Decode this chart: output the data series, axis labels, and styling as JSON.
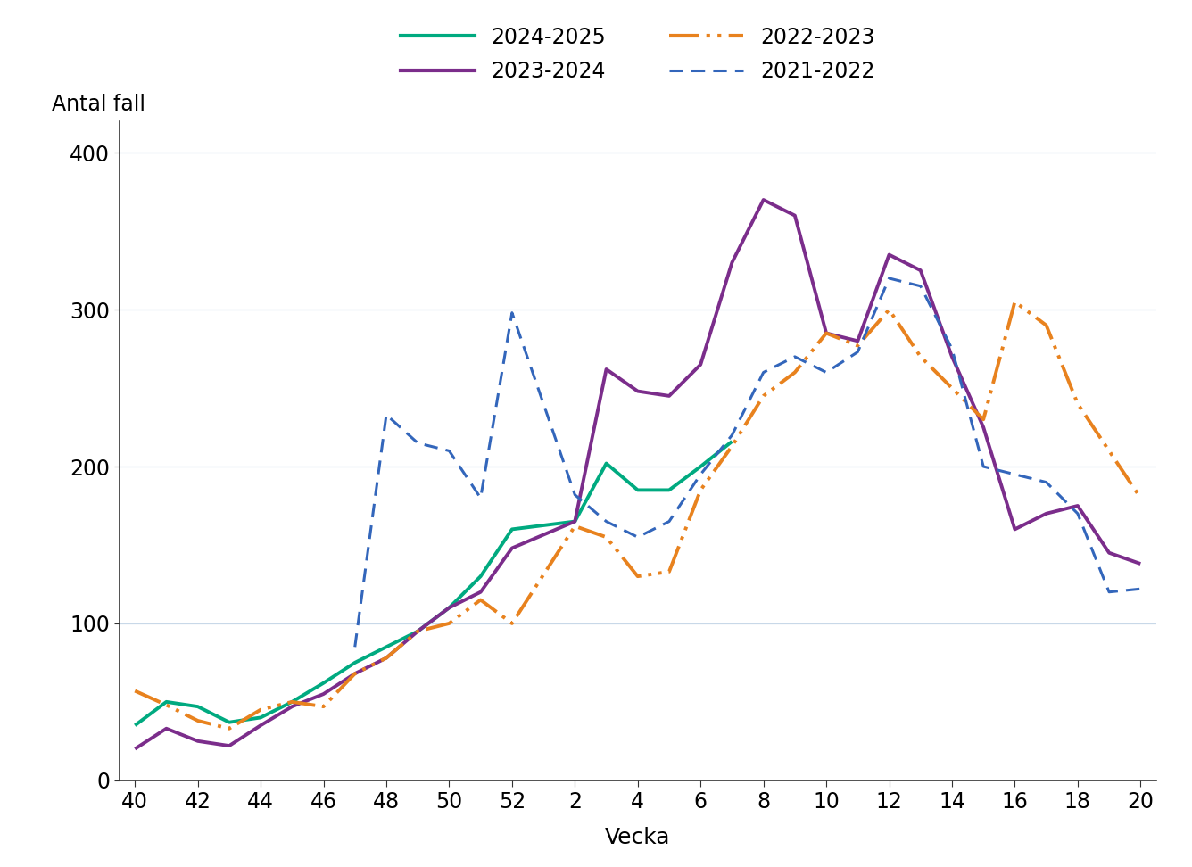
{
  "xlabel": "Vecka",
  "ylabel_title": "Antal fall",
  "ylim": [
    0,
    420
  ],
  "yticks": [
    0,
    100,
    200,
    300,
    400
  ],
  "background_color": "#ffffff",
  "series_order": [
    "2024-2025",
    "2023-2024",
    "2022-2023",
    "2021-2022"
  ],
  "series": {
    "2024-2025": {
      "color": "#00aa80",
      "linestyle": "solid",
      "linewidth": 2.8,
      "weeks": [
        40,
        41,
        42,
        43,
        44,
        45,
        46,
        47,
        48,
        49,
        50,
        51,
        52,
        2,
        3,
        4,
        5,
        6,
        7
      ],
      "values": [
        35,
        50,
        47,
        37,
        40,
        50,
        62,
        75,
        85,
        95,
        110,
        130,
        160,
        165,
        202,
        185,
        185,
        200,
        216
      ]
    },
    "2023-2024": {
      "color": "#7b2d8b",
      "linestyle": "solid",
      "linewidth": 2.8,
      "weeks": [
        40,
        41,
        42,
        43,
        44,
        45,
        46,
        47,
        48,
        49,
        50,
        51,
        52,
        2,
        3,
        4,
        5,
        6,
        7,
        8,
        9,
        10,
        11,
        12,
        13,
        14,
        15,
        16,
        17,
        18,
        19,
        20
      ],
      "values": [
        20,
        33,
        25,
        22,
        35,
        47,
        55,
        68,
        78,
        95,
        110,
        120,
        148,
        165,
        262,
        248,
        245,
        265,
        330,
        370,
        360,
        285,
        280,
        335,
        325,
        270,
        225,
        160,
        170,
        175,
        145,
        138
      ]
    },
    "2022-2023": {
      "color": "#e8821e",
      "linestyle": "dashdot",
      "linewidth": 2.8,
      "weeks": [
        40,
        41,
        42,
        43,
        44,
        45,
        46,
        47,
        48,
        49,
        50,
        51,
        52,
        2,
        3,
        4,
        5,
        6,
        7,
        8,
        9,
        10,
        11,
        12,
        13,
        14,
        15,
        16,
        17,
        18,
        19,
        20
      ],
      "values": [
        57,
        48,
        38,
        33,
        45,
        50,
        47,
        68,
        78,
        95,
        100,
        115,
        100,
        162,
        155,
        130,
        133,
        185,
        213,
        245,
        260,
        285,
        277,
        300,
        270,
        250,
        230,
        305,
        290,
        240,
        210,
        180
      ]
    },
    "2021-2022": {
      "color": "#3366bb",
      "linestyle": "dashed",
      "linewidth": 2.2,
      "weeks": [
        47,
        48,
        49,
        50,
        51,
        52,
        2,
        3,
        4,
        5,
        6,
        7,
        8,
        9,
        10,
        11,
        12,
        13,
        14,
        15,
        16,
        17,
        18,
        19,
        20
      ],
      "values": [
        85,
        233,
        215,
        210,
        180,
        298,
        182,
        165,
        155,
        165,
        195,
        220,
        260,
        270,
        260,
        273,
        320,
        315,
        275,
        200,
        195,
        190,
        170,
        120,
        122
      ]
    }
  },
  "xtick_weeks": [
    40,
    42,
    44,
    46,
    48,
    50,
    52,
    2,
    4,
    6,
    8,
    10,
    12,
    14,
    16,
    18,
    20
  ],
  "legend_row1": [
    "2024-2025",
    "2023-2024"
  ],
  "legend_row2": [
    "2022-2023",
    "2021-2022"
  ]
}
